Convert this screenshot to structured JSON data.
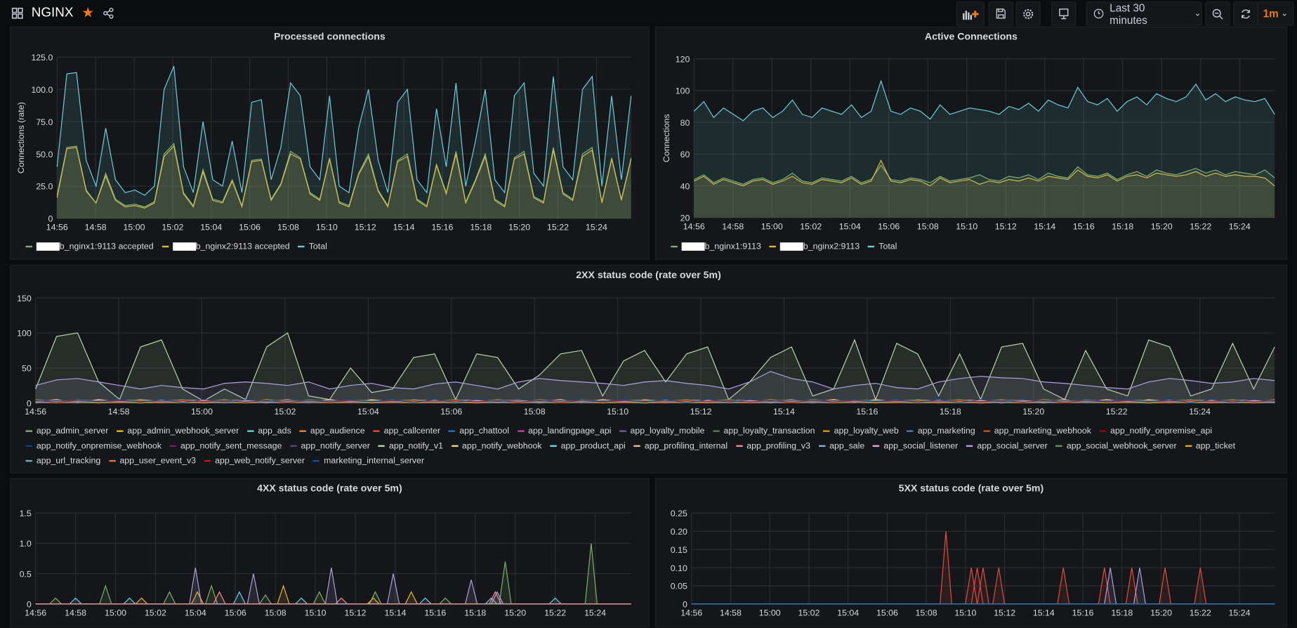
{
  "header": {
    "title": "NGINX",
    "time_range": "Last 30 minutes",
    "refresh": "1m"
  },
  "icons": [
    "apps-grid-icon",
    "star-icon",
    "share-icon",
    "add-panel-icon",
    "save-icon",
    "settings-icon",
    "tv-mode-icon",
    "clock-icon",
    "chevron-down-icon",
    "zoom-out-icon",
    "refresh-icon"
  ],
  "colors": {
    "accent": "#eb7b18",
    "bg": "#0b0c0e",
    "panel": "#141619"
  },
  "x_ticks": [
    "14:56",
    "14:58",
    "15:00",
    "15:02",
    "15:04",
    "15:06",
    "15:08",
    "15:10",
    "15:12",
    "15:14",
    "15:16",
    "15:18",
    "15:20",
    "15:22",
    "15:24"
  ],
  "chart_data": [
    {
      "id": "processed",
      "type": "line",
      "title": "Processed connections",
      "ylabel": "Connections (rate)",
      "ylim": [
        0,
        125
      ],
      "yticks": [
        "0",
        "25.0",
        "50.0",
        "75.0",
        "100.0",
        "125.0"
      ],
      "xrange_minutes": [
        0,
        29.8
      ],
      "series": [
        {
          "name": "b_nginx1:9113 accepted",
          "prefix_redacted": true,
          "color": "#7EB26D",
          "values": [
            18,
            55,
            56,
            22,
            12,
            35,
            15,
            10,
            11,
            9,
            13,
            50,
            58,
            20,
            10,
            38,
            15,
            13,
            30,
            10,
            45,
            46,
            15,
            27,
            52,
            47,
            20,
            15,
            47,
            13,
            10,
            35,
            50,
            22,
            10,
            45,
            50,
            15,
            10,
            42,
            20,
            52,
            13,
            30,
            50,
            15,
            10,
            47,
            52,
            17,
            13,
            55,
            20,
            15,
            50,
            55,
            13,
            47,
            15,
            47
          ]
        },
        {
          "name": "b_nginx2:9113 accepted",
          "prefix_redacted": true,
          "color": "#EAB839",
          "values": [
            16,
            54,
            55,
            21,
            12,
            33,
            14,
            9,
            10,
            8,
            12,
            48,
            56,
            19,
            9,
            36,
            14,
            12,
            29,
            9,
            44,
            45,
            14,
            26,
            50,
            46,
            19,
            14,
            46,
            12,
            9,
            34,
            48,
            21,
            9,
            44,
            48,
            14,
            9,
            41,
            19,
            50,
            12,
            29,
            48,
            14,
            9,
            46,
            50,
            16,
            12,
            53,
            19,
            14,
            48,
            53,
            12,
            46,
            14,
            46
          ]
        },
        {
          "name": "Total",
          "color": "#6ED0E0",
          "values": [
            40,
            112,
            113,
            45,
            25,
            70,
            30,
            20,
            22,
            18,
            25,
            100,
            118,
            40,
            20,
            75,
            30,
            25,
            60,
            20,
            90,
            92,
            30,
            55,
            105,
            95,
            40,
            30,
            95,
            25,
            20,
            70,
            100,
            45,
            20,
            90,
            100,
            30,
            20,
            85,
            40,
            105,
            25,
            60,
            100,
            30,
            20,
            95,
            105,
            35,
            25,
            110,
            40,
            30,
            100,
            110,
            25,
            95,
            30,
            95
          ]
        }
      ]
    },
    {
      "id": "active",
      "type": "line",
      "title": "Active Connections",
      "ylabel": "Connections",
      "ylim": [
        20,
        120
      ],
      "yticks": [
        "20",
        "40",
        "60",
        "80",
        "100",
        "120"
      ],
      "xrange_minutes": [
        0,
        29.8
      ],
      "series": [
        {
          "name": "b_nginx1:9113",
          "prefix_redacted": true,
          "color": "#7EB26D",
          "values": [
            44,
            47,
            42,
            45,
            43,
            41,
            44,
            45,
            42,
            44,
            48,
            43,
            42,
            45,
            44,
            43,
            46,
            42,
            44,
            53,
            44,
            43,
            45,
            44,
            42,
            46,
            43,
            44,
            45,
            47,
            44,
            43,
            46,
            45,
            47,
            44,
            48,
            46,
            45,
            52,
            47,
            46,
            48,
            44,
            47,
            49,
            46,
            50,
            48,
            47,
            49,
            51,
            48,
            50,
            47,
            49,
            48,
            47,
            50,
            45
          ]
        },
        {
          "name": "b_nginx2:9113",
          "prefix_redacted": true,
          "color": "#EAB839",
          "values": [
            43,
            46,
            41,
            44,
            42,
            40,
            43,
            44,
            41,
            43,
            46,
            42,
            41,
            44,
            43,
            42,
            45,
            41,
            43,
            56,
            43,
            42,
            44,
            43,
            40,
            45,
            42,
            43,
            44,
            41,
            43,
            42,
            44,
            43,
            45,
            43,
            46,
            45,
            44,
            50,
            46,
            45,
            47,
            43,
            46,
            47,
            45,
            48,
            47,
            46,
            47,
            49,
            46,
            48,
            46,
            47,
            46,
            46,
            45,
            40
          ]
        },
        {
          "name": "Total",
          "color": "#6ED0E0",
          "values": [
            87,
            93,
            83,
            89,
            85,
            81,
            87,
            89,
            83,
            87,
            94,
            85,
            83,
            89,
            87,
            85,
            91,
            83,
            87,
            106,
            87,
            85,
            89,
            87,
            82,
            91,
            85,
            87,
            89,
            88,
            87,
            85,
            90,
            88,
            92,
            87,
            94,
            91,
            89,
            102,
            93,
            91,
            95,
            87,
            93,
            96,
            91,
            98,
            95,
            93,
            96,
            104,
            94,
            98,
            93,
            96,
            94,
            93,
            95,
            85
          ]
        }
      ]
    },
    {
      "id": "status2xx",
      "type": "line",
      "title": "2XX status code (rate over 5m)",
      "ylim": [
        0,
        150
      ],
      "yticks": [
        "0",
        "50",
        "100",
        "150"
      ],
      "xrange_minutes": [
        0,
        29.8
      ],
      "series": [
        {
          "name": "app_admin_server",
          "color": "#7EB26D"
        },
        {
          "name": "app_admin_webhook_server",
          "color": "#EAB839"
        },
        {
          "name": "app_ads",
          "color": "#6ED0E0"
        },
        {
          "name": "app_audience",
          "color": "#EF843C"
        },
        {
          "name": "app_callcenter",
          "color": "#E24D42"
        },
        {
          "name": "app_chattool",
          "color": "#1F78C1"
        },
        {
          "name": "app_landingpage_api",
          "color": "#BA43A9"
        },
        {
          "name": "app_loyalty_mobile",
          "color": "#705DA0"
        },
        {
          "name": "app_loyalty_transaction",
          "color": "#508642"
        },
        {
          "name": "app_loyalty_web",
          "color": "#CCA300"
        },
        {
          "name": "app_marketing",
          "color": "#447EBC"
        },
        {
          "name": "app_marketing_webhook",
          "color": "#C15C17"
        },
        {
          "name": "app_notify_onpremise_api",
          "color": "#890F02"
        },
        {
          "name": "app_notify_onpremise_webhook",
          "color": "#0A437C"
        },
        {
          "name": "app_notify_sent_message",
          "color": "#6D1F62"
        },
        {
          "name": "app_notify_server",
          "color": "#584477"
        },
        {
          "name": "app_notify_v1",
          "color": "#B7DBAB",
          "values": [
            20,
            95,
            100,
            30,
            5,
            80,
            90,
            20,
            3,
            20,
            5,
            80,
            100,
            10,
            5,
            50,
            15,
            20,
            65,
            70,
            5,
            70,
            65,
            20,
            40,
            70,
            75,
            10,
            60,
            75,
            30,
            70,
            80,
            5,
            30,
            65,
            80,
            10,
            20,
            90,
            5,
            85,
            70,
            10,
            70,
            5,
            80,
            85,
            20,
            5,
            75,
            20,
            10,
            90,
            80,
            10,
            20,
            85,
            20,
            80
          ]
        },
        {
          "name": "app_notify_webhook",
          "color": "#F4D598"
        },
        {
          "name": "app_product_api",
          "color": "#70DBED"
        },
        {
          "name": "app_profiling_internal",
          "color": "#F9BA8F"
        },
        {
          "name": "app_profiling_v3",
          "color": "#F29191"
        },
        {
          "name": "app_sale",
          "color": "#82B5D8"
        },
        {
          "name": "app_social_listener",
          "color": "#E5A8E2"
        },
        {
          "name": "app_social_server",
          "color": "#AEA2E0",
          "values": [
            25,
            33,
            35,
            30,
            25,
            20,
            25,
            22,
            20,
            28,
            30,
            28,
            25,
            30,
            20,
            25,
            28,
            22,
            20,
            27,
            30,
            25,
            20,
            30,
            35,
            32,
            30,
            28,
            25,
            30,
            32,
            28,
            25,
            20,
            30,
            45,
            35,
            30,
            20,
            25,
            28,
            22,
            20,
            30,
            35,
            38,
            36,
            35,
            30,
            28,
            25,
            22,
            20,
            30,
            35,
            32,
            28,
            30,
            35,
            32
          ]
        },
        {
          "name": "app_social_webhook_server",
          "color": "#629E51"
        },
        {
          "name": "app_ticket",
          "color": "#E5AC0E"
        },
        {
          "name": "app_url_tracking",
          "color": "#64B0C8"
        },
        {
          "name": "app_user_event_v3",
          "color": "#E0752D"
        },
        {
          "name": "app_web_notify_server",
          "color": "#BF1B00"
        },
        {
          "name": "marketing_internal_server",
          "color": "#0A50A1"
        }
      ]
    },
    {
      "id": "status4xx",
      "type": "line",
      "title": "4XX status code (rate over 5m)",
      "ylim": [
        0,
        1.5
      ],
      "yticks": [
        "0",
        "0.5",
        "1.0",
        "1.5"
      ],
      "xrange_minutes": [
        0,
        29.8
      ],
      "series": [
        {
          "name": "app_admin_server",
          "color": "#7EB26D",
          "spikes": [
            [
              1,
              0.1
            ],
            [
              3.5,
              0.3
            ],
            [
              6.7,
              0.2
            ],
            [
              8.8,
              0.3
            ],
            [
              11.5,
              0.15
            ],
            [
              14.2,
              0.2
            ],
            [
              17,
              0.2
            ],
            [
              20.5,
              0.1
            ],
            [
              23.5,
              0.7
            ],
            [
              27.8,
              1.0
            ]
          ]
        },
        {
          "name": "app_admin_webhook_server",
          "color": "#EAB839",
          "spikes": [
            [
              5.3,
              0.1
            ],
            [
              8.1,
              0.2
            ],
            [
              12.4,
              0.3
            ],
            [
              16.9,
              0.1
            ],
            [
              18.8,
              0.2
            ]
          ]
        },
        {
          "name": "app_ads",
          "color": "#6ED0E0",
          "spikes": [
            [
              2,
              0.1
            ],
            [
              4.7,
              0.1
            ],
            [
              10.2,
              0.2
            ],
            [
              13.3,
              0.1
            ],
            [
              19.5,
              0.1
            ],
            [
              22.8,
              0.1
            ],
            [
              26,
              0.1
            ]
          ]
        },
        {
          "name": "app_social_server",
          "color": "#AEA2E0",
          "spikes": [
            [
              8,
              0.6
            ],
            [
              10.9,
              0.5
            ],
            [
              14.8,
              0.6
            ],
            [
              17.9,
              0.5
            ],
            [
              21.8,
              0.4
            ],
            [
              23.1,
              0.2
            ]
          ]
        },
        {
          "name": "app_profiling_v3",
          "color": "#F29191",
          "spikes": [
            [
              9.2,
              0.2
            ],
            [
              15.3,
              0.1
            ],
            [
              23,
              0.2
            ]
          ]
        }
      ]
    },
    {
      "id": "status5xx",
      "type": "line",
      "title": "5XX status code (rate over 5m)",
      "ylim": [
        0,
        0.25
      ],
      "yticks": [
        "0",
        "0.05",
        "0.10",
        "0.15",
        "0.20",
        "0.25"
      ],
      "xrange_minutes": [
        0,
        29.8
      ],
      "series": [
        {
          "name": "app_web_notify_server",
          "color": "#E24D42",
          "spikes": [
            [
              13,
              0.2
            ],
            [
              14.3,
              0.1
            ],
            [
              14.6,
              0.1
            ],
            [
              14.9,
              0.1
            ],
            [
              15.7,
              0.1
            ],
            [
              19,
              0.1
            ],
            [
              21.1,
              0.1
            ],
            [
              22.5,
              0.1
            ],
            [
              24.2,
              0.1
            ],
            [
              26,
              0.1
            ]
          ]
        },
        {
          "name": "app_social_server",
          "color": "#AEA2E0",
          "spikes": [
            [
              21.4,
              0.1
            ],
            [
              22.9,
              0.1
            ]
          ]
        },
        {
          "name": "marketing_internal_server",
          "color": "#1F78C1",
          "spikes": []
        }
      ]
    }
  ]
}
